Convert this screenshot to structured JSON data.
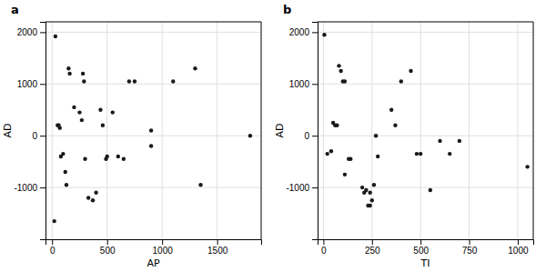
{
  "chart_data": [
    {
      "type": "scatter",
      "title": "a",
      "xlabel": "AP",
      "ylabel": "AD",
      "x": [
        30,
        150,
        160,
        270,
        280,
        300,
        330,
        370,
        400,
        50,
        60,
        80,
        100,
        200,
        250,
        290,
        440,
        460,
        490,
        500,
        550,
        600,
        650,
        700,
        750,
        900,
        1100,
        1300,
        1800,
        20,
        120,
        70,
        130,
        900,
        1350
      ],
      "values": [
        1920,
        1300,
        1200,
        300,
        1200,
        -450,
        -1200,
        -1250,
        -1100,
        200,
        200,
        -400,
        -350,
        550,
        450,
        1050,
        500,
        200,
        -450,
        -400,
        450,
        -400,
        -450,
        1050,
        1050,
        100,
        1050,
        1300,
        0,
        -1650,
        -700,
        150,
        -950,
        -200,
        -950
      ],
      "color": "#1a1a1a",
      "xlim": [
        -60,
        1900
      ],
      "xticks": [
        0,
        500,
        1000,
        1500
      ],
      "ylim": [
        -2000,
        2200
      ],
      "yticks": [
        -1000,
        0,
        1000,
        2000
      ],
      "grid": true
    },
    {
      "type": "scatter",
      "title": "b",
      "xlabel": "TI",
      "ylabel": "AD",
      "x": [
        5,
        40,
        50,
        60,
        70,
        80,
        90,
        100,
        110,
        130,
        140,
        200,
        210,
        220,
        240,
        250,
        260,
        280,
        350,
        370,
        400,
        450,
        480,
        500,
        550,
        600,
        650,
        700,
        1050,
        20,
        110,
        230,
        240,
        270
      ],
      "values": [
        1950,
        -300,
        250,
        200,
        200,
        1350,
        1250,
        1050,
        1050,
        -450,
        -450,
        -1000,
        -1100,
        -1050,
        -1350,
        -1250,
        -950,
        -400,
        500,
        200,
        1050,
        1250,
        -350,
        -350,
        -1050,
        -100,
        -350,
        -100,
        -600,
        -350,
        -750,
        -1350,
        -1100,
        0
      ],
      "color": "#1a1a1a",
      "xlim": [
        -30,
        1080
      ],
      "xticks": [
        0,
        250,
        500,
        750,
        1000
      ],
      "ylim": [
        -2000,
        2200
      ],
      "yticks": [
        -1000,
        0,
        1000,
        2000
      ],
      "grid": true
    }
  ]
}
